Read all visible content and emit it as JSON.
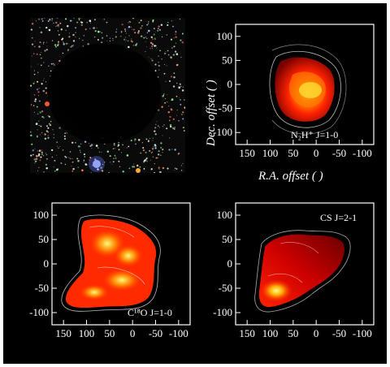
{
  "optical_image": {
    "description_icon": "dark-cloud-star-field"
  },
  "panels": [
    {
      "id": "n2h",
      "label": "N₂H⁺ J=1-0",
      "x_ticks": [
        "150",
        "100",
        "50",
        "0",
        "-50",
        "-100"
      ],
      "y_ticks": [
        "100",
        "50",
        "0",
        "-50",
        "-100"
      ],
      "x_title": "R.A. offset (   )",
      "y_title": "Dec. offset (   )"
    },
    {
      "id": "c18o",
      "label": "C¹⁸O J=1-0",
      "x_ticks": [
        "150",
        "100",
        "50",
        "0",
        "-50",
        "-100"
      ],
      "y_ticks": [
        "100",
        "50",
        "0",
        "-50",
        "-100"
      ]
    },
    {
      "id": "cs",
      "label": "CS J=2-1",
      "x_ticks": [
        "150",
        "100",
        "50",
        "0",
        "-50",
        "-100"
      ],
      "y_ticks": [
        "100",
        "50",
        "0",
        "-50",
        "-100"
      ]
    }
  ],
  "colors": {
    "background": "#000000",
    "frame": "#ffffff",
    "emission_high": "#ffff66",
    "emission_mid": "#ff3300",
    "emission_low": "#8b0000"
  }
}
